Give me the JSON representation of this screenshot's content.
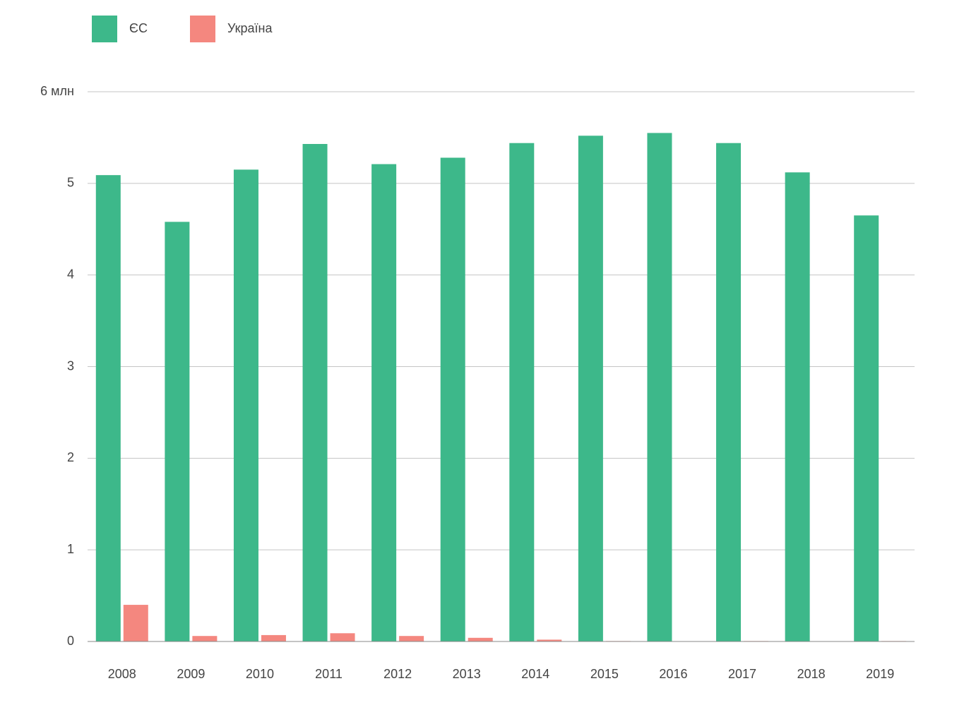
{
  "chart_data": {
    "type": "bar",
    "categories": [
      "2008",
      "2009",
      "2010",
      "2011",
      "2012",
      "2013",
      "2014",
      "2015",
      "2016",
      "2017",
      "2018",
      "2019"
    ],
    "series": [
      {
        "name": "ЄС",
        "color": "#3db88a",
        "values": [
          5.09,
          4.58,
          5.15,
          5.43,
          5.21,
          5.28,
          5.44,
          5.52,
          5.55,
          5.44,
          5.12,
          4.65
        ]
      },
      {
        "name": "Україна",
        "color": "#f4877f",
        "values": [
          0.4,
          0.06,
          0.07,
          0.09,
          0.06,
          0.04,
          0.02,
          0.005,
          0,
          0.005,
          0.003,
          0.005
        ]
      }
    ],
    "ylim": [
      0,
      6
    ],
    "yticks": [
      0,
      1,
      2,
      3,
      4,
      5,
      {
        "value": 6,
        "label": "6 млн"
      }
    ],
    "grid": true
  }
}
